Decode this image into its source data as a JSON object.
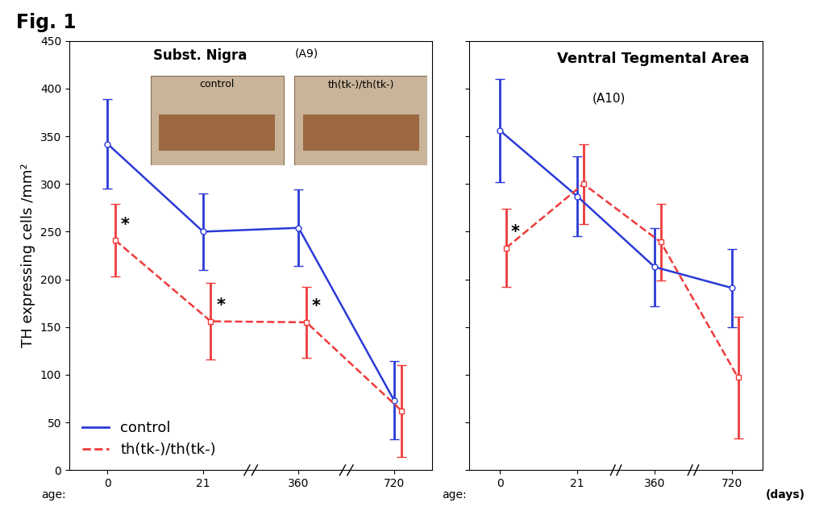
{
  "title": "Fig. 1",
  "chart_data": [
    {
      "type": "line",
      "title": "Subst. Nigra",
      "subtitle": "(A9)",
      "image_labels": [
        "control",
        "th(tk-)/th(tk-)"
      ],
      "y_label": "TH expressing cells /mm²",
      "x_label": "age:",
      "categories": [
        "0",
        "21",
        "360",
        "720"
      ],
      "series": [
        {
          "name": "control",
          "color": "#2a3ad6",
          "line_style": "solid",
          "marker": "o",
          "values": [
            342,
            250,
            254,
            73
          ],
          "errors": [
            47,
            40,
            40,
            41
          ]
        },
        {
          "name": "th(tk-)/th(tk-)",
          "color": "#f03a3a",
          "line_style": "dashed",
          "marker": "s",
          "values": [
            241,
            156,
            155,
            62
          ],
          "errors": [
            38,
            40,
            37,
            48
          ]
        }
      ],
      "annotations": [
        {
          "text": "*",
          "series": "th(tk-)/th(tk-)",
          "at": "0"
        },
        {
          "text": "*",
          "series": "th(tk-)/th(tk-)",
          "at": "21"
        },
        {
          "text": "*",
          "series": "th(tk-)/th(tk-)",
          "at": "360"
        }
      ],
      "ylim": [
        0,
        450
      ],
      "yticks": [
        0,
        50,
        100,
        150,
        200,
        250,
        300,
        350,
        400,
        450
      ],
      "legend": "lower left",
      "grid": false
    },
    {
      "type": "line",
      "title": "Ventral Tegmental Area",
      "subtitle": "(A10)",
      "x_label": "age:",
      "x_unit_label": "(days)",
      "categories": [
        "0",
        "21",
        "360",
        "720"
      ],
      "series": [
        {
          "name": "control",
          "color": "#2a3ad6",
          "line_style": "solid",
          "marker": "o",
          "values": [
            356,
            287,
            213,
            191
          ],
          "errors": [
            54,
            42,
            41,
            41
          ]
        },
        {
          "name": "th(tk-)/th(tk-)",
          "color": "#f03a3a",
          "line_style": "dashed",
          "marker": "s",
          "values": [
            233,
            300,
            239,
            97
          ],
          "errors": [
            41,
            42,
            40,
            64
          ]
        }
      ],
      "annotations": [
        {
          "text": "*",
          "series": "th(tk-)/th(tk-)",
          "at": "0"
        }
      ],
      "ylim": [
        0,
        450
      ],
      "yticks": [
        0,
        50,
        100,
        150,
        200,
        250,
        300,
        350,
        400,
        450
      ],
      "tick_labels": "x",
      "grid": false
    }
  ]
}
